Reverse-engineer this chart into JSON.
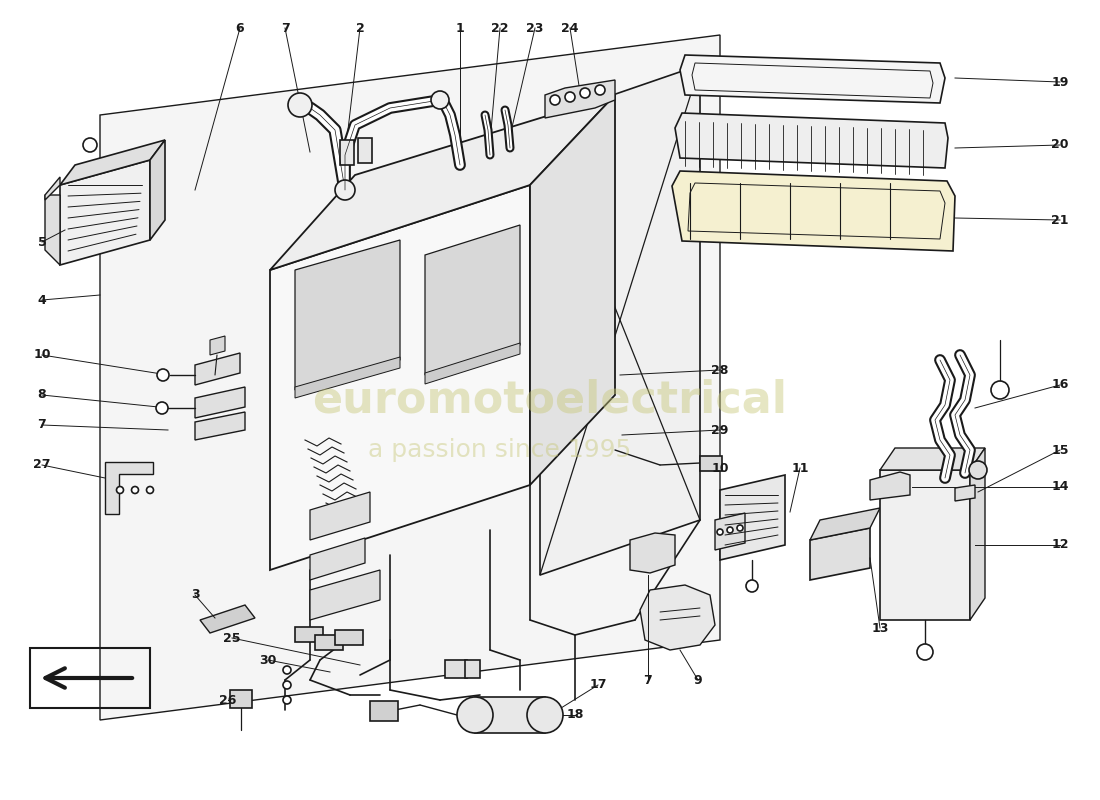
{
  "bg_color": "#ffffff",
  "line_color": "#1a1a1a",
  "watermark_text1": "euromotoelectrical",
  "watermark_text2": "a passion since 1995",
  "watermark_color": "#c8c87a",
  "wm_alpha": 0.45
}
